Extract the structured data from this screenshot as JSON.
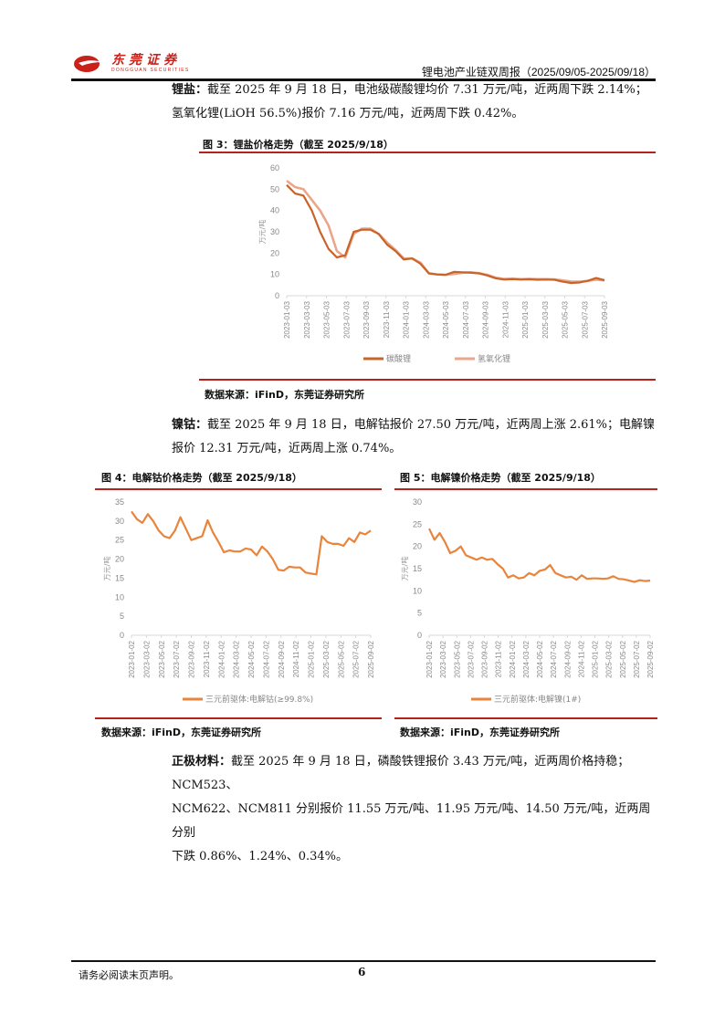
{
  "header": {
    "logo_cn": "东莞证券",
    "logo_en": "DONGGUAN SECURITIES",
    "report_title": "锂电池产业链双周报（2025/09/05-2025/09/18）",
    "brand_color": "#c8221b"
  },
  "sections": {
    "lithium": {
      "label": "锂盐：",
      "line1": "截至 2025 年 9 月 18 日，电池级碳酸锂均价 7.31 万元/吨，近两周下跌 2.14%；",
      "line2": "氢氧化锂(LiOH 56.5%)报价 7.16 万元/吨，近两周下跌 0.42%。"
    },
    "cobalt_nickel": {
      "label": "镍钴：",
      "line1": "截至 2025 年 9 月 18 日，电解钴报价 27.50 万元/吨，近两周上涨 2.61%；电解镍",
      "line2": "报价 12.31 万元/吨，近两周上涨 0.74%。"
    },
    "cathode": {
      "label": "正极材料：",
      "line1": "截至 2025 年 9 月 18 日，磷酸铁锂报价 3.43 万元/吨，近两周价格持稳；NCM523、",
      "line2": "NCM622、NCM811 分别报价 11.55 万元/吨、11.95 万元/吨、14.50 万元/吨，近两周分别",
      "line3": "下跌 0.86%、1.24%、0.34%。"
    }
  },
  "figures": {
    "fig3": {
      "title": "图 3：锂盐价格走势（截至 2025/9/18）",
      "source": "数据来源：iFinD，东莞证券研究所"
    },
    "fig4": {
      "title": "图 4：电解钴价格走势（截至 2025/9/18）",
      "source": "数据来源：iFinD，东莞证券研究所"
    },
    "fig5": {
      "title": "图 5：电解镍价格走势（截至 2025/9/18）",
      "source": "数据来源：iFinD，东莞证券研究所"
    }
  },
  "footer": {
    "note": "请务必阅读末页声明。",
    "page": "6"
  },
  "chart_data": [
    {
      "id": "fig3",
      "type": "line",
      "title": "图 3：锂盐价格走势（截至 2025/9/18）",
      "xlabel": "",
      "ylabel": "万元/吨",
      "ylim": [
        0,
        60
      ],
      "yticks": [
        0,
        10,
        20,
        30,
        40,
        50,
        60
      ],
      "grid": false,
      "legend_position": "bottom",
      "categories": [
        "2023-01-03",
        "2023-03-03",
        "2023-05-03",
        "2023-07-03",
        "2023-09-03",
        "2023-11-03",
        "2024-01-03",
        "2024-03-03",
        "2024-05-03",
        "2024-07-03",
        "2024-09-03",
        "2024-11-03",
        "2025-01-03",
        "2025-03-03",
        "2025-05-03",
        "2025-07-03",
        "2025-09-03"
      ],
      "series": [
        {
          "name": "碳酸锂",
          "color": "#c8642a",
          "width": 2.2,
          "values": [
            52,
            48,
            47,
            40,
            30,
            22,
            18,
            19,
            30,
            31,
            31,
            29,
            24,
            21,
            17,
            17.5,
            15,
            10.5,
            10,
            9.8,
            11.2,
            11,
            10.8,
            10.5,
            9.5,
            8.2,
            7.6,
            7.8,
            7.6,
            7.7,
            7.5,
            7.6,
            7.5,
            6.6,
            6.0,
            6.2,
            7.0,
            8.3,
            7.3
          ]
        },
        {
          "name": "氢氧化锂",
          "color": "#eba58a",
          "width": 2.6,
          "values": [
            54,
            51,
            50,
            45,
            40,
            33,
            21,
            18,
            29,
            31.5,
            31.5,
            29,
            25,
            21.5,
            17.5,
            17.5,
            15.5,
            10.5,
            10,
            9.8,
            10.2,
            10.8,
            11,
            10.6,
            9.8,
            8.5,
            7.9,
            8.0,
            7.8,
            7.9,
            7.8,
            7.8,
            7.7,
            7.2,
            6.7,
            6.6,
            7.0,
            7.5,
            7.2
          ]
        }
      ]
    },
    {
      "id": "fig4",
      "type": "line",
      "title": "图 4：电解钴价格走势（截至 2025/9/18）",
      "xlabel": "",
      "ylabel": "万元/吨",
      "ylim": [
        0,
        35
      ],
      "yticks": [
        0,
        5,
        10,
        15,
        20,
        25,
        30,
        35
      ],
      "grid": false,
      "legend_position": "bottom",
      "categories": [
        "2023-01-02",
        "2023-03-02",
        "2023-05-02",
        "2023-07-02",
        "2023-09-02",
        "2023-11-02",
        "2024-01-02",
        "2024-03-02",
        "2024-05-02",
        "2024-07-02",
        "2024-09-02",
        "2024-11-02",
        "2025-01-02",
        "2025-03-02",
        "2025-05-02",
        "2025-07-02",
        "2025-09-02"
      ],
      "series": [
        {
          "name": "三元前驱体:电解钴(≥99.8%)",
          "color": "#e8843c",
          "width": 2.2,
          "values": [
            32.5,
            30.5,
            29.5,
            31.8,
            30,
            27.5,
            26,
            25.5,
            27.5,
            31,
            28,
            25,
            25.5,
            26,
            30.2,
            27,
            24.5,
            21.8,
            22.3,
            22,
            22,
            22.8,
            22.5,
            21,
            23.3,
            22,
            20,
            17.2,
            17,
            18,
            17.8,
            17.8,
            16.5,
            16.2,
            16.0,
            26,
            24.5,
            24,
            24,
            23.5,
            25.5,
            24.5,
            27,
            26.5,
            27.5
          ]
        }
      ]
    },
    {
      "id": "fig5",
      "type": "line",
      "title": "图 5：电解镍价格走势（截至 2025/9/18）",
      "xlabel": "",
      "ylabel": "万元/吨",
      "ylim": [
        0,
        30
      ],
      "yticks": [
        0,
        5,
        10,
        15,
        20,
        25,
        30
      ],
      "grid": false,
      "legend_position": "bottom",
      "categories": [
        "2023-01-02",
        "2023-03-02",
        "2023-05-02",
        "2023-07-02",
        "2023-09-02",
        "2023-11-02",
        "2024-01-02",
        "2024-03-02",
        "2024-05-02",
        "2024-07-02",
        "2024-09-02",
        "2024-11-02",
        "2025-01-02",
        "2025-03-02",
        "2025-05-02",
        "2025-07-02",
        "2025-09-02"
      ],
      "series": [
        {
          "name": "三元前驱体:电解镍(1#)",
          "color": "#e8843c",
          "width": 2.2,
          "values": [
            24,
            21.5,
            23,
            21,
            18.5,
            19,
            20,
            18,
            17.5,
            17,
            17.5,
            17,
            17.2,
            16,
            15,
            13,
            13.5,
            12.8,
            13,
            14,
            13.5,
            14.5,
            14.8,
            15.8,
            14,
            13.5,
            13,
            13.2,
            12.5,
            13.5,
            12.7,
            12.8,
            12.8,
            12.7,
            12.8,
            13.3,
            12.7,
            12.6,
            12.3,
            12,
            12.4,
            12.2,
            12.3
          ]
        }
      ]
    }
  ]
}
